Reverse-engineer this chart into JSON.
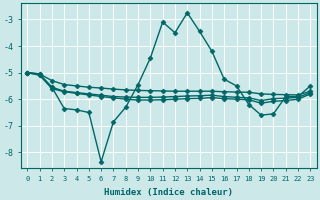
{
  "xlabel": "Humidex (Indice chaleur)",
  "bg_color": "#cce8e8",
  "line_color": "#006666",
  "line_width": 1.0,
  "marker": "D",
  "marker_size": 2.5,
  "xlim": [
    -0.5,
    23.5
  ],
  "ylim": [
    -8.6,
    -2.4
  ],
  "yticks": [
    -8,
    -7,
    -6,
    -5,
    -4,
    -3
  ],
  "xticks": [
    0,
    1,
    2,
    3,
    4,
    5,
    6,
    7,
    8,
    9,
    10,
    11,
    12,
    13,
    14,
    15,
    16,
    17,
    18,
    19,
    20,
    21,
    22,
    23
  ],
  "series": [
    {
      "x": [
        0,
        1,
        2,
        3,
        4,
        5,
        6,
        7,
        8,
        9,
        10,
        11,
        12,
        13,
        14,
        15,
        16,
        17,
        18,
        19,
        20,
        21,
        22,
        23
      ],
      "y": [
        -5.0,
        -5.05,
        -5.55,
        -6.35,
        -6.4,
        -6.5,
        -8.35,
        -6.85,
        -6.3,
        -5.45,
        -4.45,
        -3.1,
        -3.5,
        -2.75,
        -3.45,
        -4.2,
        -5.25,
        -5.5,
        -6.2,
        -6.6,
        -6.55,
        -5.9,
        -5.9,
        -5.5
      ]
    },
    {
      "x": [
        0,
        1,
        2,
        3,
        4,
        5,
        6,
        7,
        8,
        9,
        10,
        11,
        12,
        13,
        14,
        15,
        16,
        17,
        18,
        19,
        20,
        21,
        22,
        23
      ],
      "y": [
        -5.0,
        -5.05,
        -5.3,
        -5.45,
        -5.5,
        -5.55,
        -5.58,
        -5.62,
        -5.65,
        -5.67,
        -5.68,
        -5.69,
        -5.7,
        -5.7,
        -5.7,
        -5.7,
        -5.72,
        -5.73,
        -5.74,
        -5.8,
        -5.82,
        -5.83,
        -5.84,
        -5.7
      ]
    },
    {
      "x": [
        0,
        1,
        2,
        3,
        4,
        5,
        6,
        7,
        8,
        9,
        10,
        11,
        12,
        13,
        14,
        15,
        16,
        17,
        18,
        19,
        20,
        21,
        22,
        23
      ],
      "y": [
        -5.0,
        -5.08,
        -5.55,
        -5.7,
        -5.75,
        -5.8,
        -5.85,
        -5.9,
        -5.92,
        -5.93,
        -5.93,
        -5.92,
        -5.9,
        -5.88,
        -5.87,
        -5.85,
        -5.9,
        -5.93,
        -5.95,
        -6.05,
        -5.98,
        -5.96,
        -5.93,
        -5.75
      ]
    },
    {
      "x": [
        0,
        1,
        2,
        3,
        4,
        5,
        6,
        7,
        8,
        9,
        10,
        11,
        12,
        13,
        14,
        15,
        16,
        17,
        18,
        19,
        20,
        21,
        22,
        23
      ],
      "y": [
        -5.0,
        -5.1,
        -5.6,
        -5.72,
        -5.78,
        -5.84,
        -5.9,
        -5.95,
        -6.0,
        -6.03,
        -6.03,
        -6.02,
        -6.0,
        -5.98,
        -5.97,
        -5.94,
        -5.98,
        -6.0,
        -6.02,
        -6.15,
        -6.08,
        -6.05,
        -6.0,
        -5.8
      ]
    }
  ]
}
